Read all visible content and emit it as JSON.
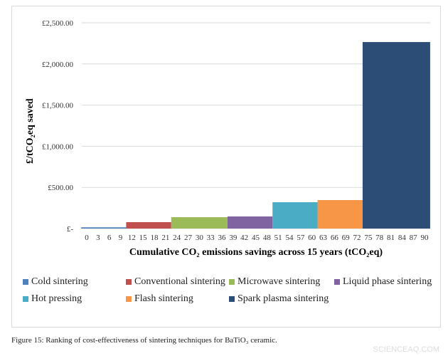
{
  "chart_data": {
    "type": "bar",
    "xlabel": "Cumulative CO₂ emissions savings across 15 years (tCO₂eq)",
    "ylabel": "£/tCO₂eq saved",
    "ylim": [
      0,
      2500
    ],
    "xlim": [
      0,
      90
    ],
    "x_ticks": [
      "0",
      "3",
      "6",
      "9",
      "12",
      "15",
      "18",
      "21",
      "24",
      "27",
      "30",
      "33",
      "36",
      "39",
      "42",
      "45",
      "48",
      "51",
      "54",
      "57",
      "60",
      "63",
      "66",
      "69",
      "72",
      "75",
      "78",
      "81",
      "84",
      "87",
      "90"
    ],
    "y_ticks": [
      {
        "v": 0,
        "label": "£-"
      },
      {
        "v": 500,
        "label": "£500.00"
      },
      {
        "v": 1000,
        "label": "£1,000.00"
      },
      {
        "v": 1500,
        "label": "£1,500.00"
      },
      {
        "v": 2000,
        "label": "£2,000.00"
      },
      {
        "v": 2500,
        "label": "£2,500.00"
      }
    ],
    "grid": true,
    "legend_position": "bottom",
    "series": [
      {
        "name": "Cold sintering",
        "x_start": -1.5,
        "x_end": 10.5,
        "value": 15,
        "color": "#4f81bd"
      },
      {
        "name": "Conventional sintering",
        "x_start": 10.5,
        "x_end": 22.5,
        "value": 78,
        "color": "#c0504d"
      },
      {
        "name": "Microwave sintering",
        "x_start": 22.5,
        "x_end": 37.5,
        "value": 138,
        "color": "#9bbb59"
      },
      {
        "name": "Liquid phase sintering",
        "x_start": 37.5,
        "x_end": 49.5,
        "value": 147,
        "color": "#8064a2"
      },
      {
        "name": "Hot pressing",
        "x_start": 49.5,
        "x_end": 61.5,
        "value": 320,
        "color": "#4bacc6"
      },
      {
        "name": "Flash sintering",
        "x_start": 61.5,
        "x_end": 73.5,
        "value": 346,
        "color": "#f79646"
      },
      {
        "name": "Spark plasma sintering",
        "x_start": 73.5,
        "x_end": 91.5,
        "value": 2266,
        "color": "#2c4d75"
      }
    ]
  },
  "caption": "Figure 15: Ranking of cost-effectiveness of sintering techniques for BaTiO₃ ceramic.",
  "watermark": "SCIENCEAQ.COM"
}
